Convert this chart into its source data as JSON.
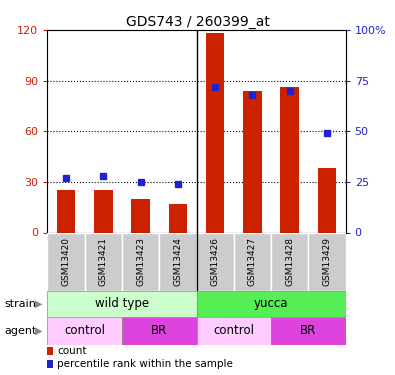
{
  "title": "GDS743 / 260399_at",
  "samples": [
    "GSM13420",
    "GSM13421",
    "GSM13423",
    "GSM13424",
    "GSM13426",
    "GSM13427",
    "GSM13428",
    "GSM13429"
  ],
  "counts": [
    25,
    25,
    20,
    17,
    118,
    84,
    86,
    38
  ],
  "percentile_ranks": [
    27,
    28,
    25,
    24,
    72,
    68,
    70,
    49
  ],
  "ylim_left": [
    0,
    120
  ],
  "ylim_right": [
    0,
    100
  ],
  "yticks_left": [
    0,
    30,
    60,
    90,
    120
  ],
  "yticks_right": [
    0,
    25,
    50,
    75,
    100
  ],
  "ytick_labels_right": [
    "0",
    "25",
    "50",
    "75",
    "100%"
  ],
  "bar_color": "#cc2200",
  "dot_color": "#2222cc",
  "strain_labels": [
    "wild type",
    "yucca"
  ],
  "strain_colors": [
    "#ccffcc",
    "#55ee55"
  ],
  "agent_labels": [
    "control",
    "BR",
    "control",
    "BR"
  ],
  "agent_colors": [
    "#ffccff",
    "#dd44dd",
    "#ffccff",
    "#dd44dd"
  ],
  "separator_col": 4,
  "left_axis_color": "#cc2200",
  "right_axis_color": "#2222cc",
  "legend_count_label": "count",
  "legend_pct_label": "percentile rank within the sample",
  "xtick_bg_color": "#cccccc",
  "bar_width": 0.5
}
